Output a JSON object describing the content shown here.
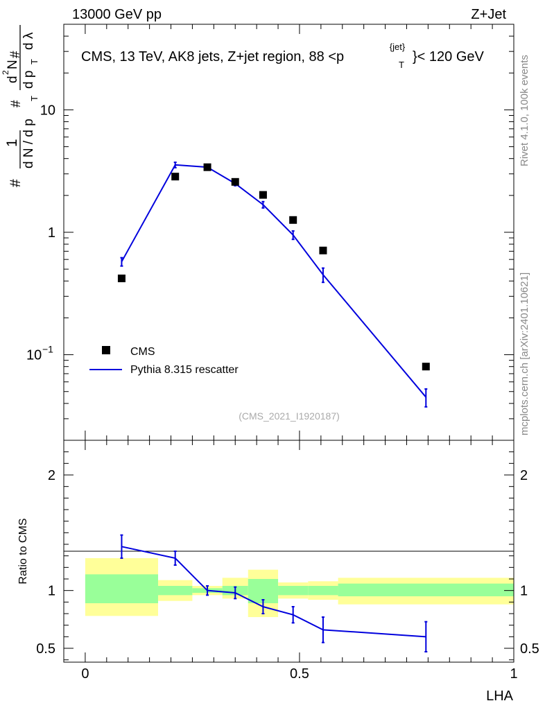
{
  "header": {
    "energy_label": "13000 GeV pp",
    "process_label": "Z+Jet"
  },
  "side_labels": {
    "rivet": "Rivet 4.1.0,  100k events",
    "mcplots": "mcplots.cern.ch [arXiv:2401.10621]"
  },
  "colors": {
    "data": "#000000",
    "mc": "#0000dd",
    "band_inner": "#99ff99",
    "band_outer": "#ffff99"
  },
  "chart_data": [
    {
      "type": "scatter",
      "name": "main-panel",
      "title": "CMS, 13 TeV, AK8 jets, Z+jet region, 88 <p",
      "title_sup": "{jet}",
      "title_sub": "T",
      "title_end": "}< 120 GeV",
      "watermark": "(CMS_2021_I1920187)",
      "yscale": "log",
      "xlim": [
        -0.05,
        1.0
      ],
      "ylim": [
        0.02,
        50
      ],
      "yticks": [
        {
          "value": 10,
          "label": "10"
        },
        {
          "value": 1,
          "label": "1"
        }
      ],
      "ytick_exp": {
        "value": 0.1,
        "base": "10",
        "exp": "−1"
      },
      "ylabel": {
        "hash1": "#",
        "one": "1",
        "dn": "d N / d p",
        "t": "T",
        "hash2": "#",
        "d2n": "d",
        "sq": "2",
        "n": "N",
        "dp": "d p",
        "dl": "d λ",
        "hash3": "#"
      },
      "legend": {
        "cms": "CMS",
        "mc": "Pythia 8.315 rescatter"
      },
      "series": [
        {
          "name": "CMS",
          "x": [
            0.085,
            0.21,
            0.285,
            0.35,
            0.415,
            0.485,
            0.555,
            0.795
          ],
          "y": [
            0.42,
            2.85,
            3.4,
            2.58,
            2.02,
            1.26,
            0.71,
            0.08
          ]
        },
        {
          "name": "Pythia 8.315 rescatter",
          "x": [
            0.085,
            0.21,
            0.285,
            0.35,
            0.415,
            0.485,
            0.555,
            0.795
          ],
          "y": [
            0.575,
            3.55,
            3.4,
            2.5,
            1.68,
            0.95,
            0.45,
            0.045
          ],
          "err": [
            0.045,
            0.18,
            0.12,
            0.1,
            0.1,
            0.075,
            0.06,
            0.0075
          ]
        }
      ]
    },
    {
      "type": "line",
      "name": "ratio-panel",
      "ylabel": "Ratio to CMS",
      "xlabel": "LHA",
      "xlim": [
        -0.05,
        1.0
      ],
      "ylim": [
        0.38,
        2.3
      ],
      "xticks": [
        {
          "value": 0,
          "label": "0"
        },
        {
          "value": 0.5,
          "label": "0.5"
        },
        {
          "value": 1,
          "label": "1"
        }
      ],
      "yticks": [
        {
          "value": 2,
          "label": "2"
        },
        {
          "value": 1,
          "label": "1"
        },
        {
          "value": 0.5,
          "label": "0.5"
        }
      ],
      "bands": [
        {
          "x0": 0.0,
          "x1": 0.17,
          "inner": [
            0.89,
            1.14
          ],
          "outer": [
            0.78,
            1.28
          ]
        },
        {
          "x0": 0.17,
          "x1": 0.25,
          "inner": [
            0.96,
            1.04
          ],
          "outer": [
            0.91,
            1.09
          ]
        },
        {
          "x0": 0.25,
          "x1": 0.32,
          "inner": [
            0.98,
            1.02
          ],
          "outer": [
            0.96,
            1.04
          ]
        },
        {
          "x0": 0.32,
          "x1": 0.38,
          "inner": [
            0.96,
            1.04
          ],
          "outer": [
            0.93,
            1.11
          ]
        },
        {
          "x0": 0.38,
          "x1": 0.45,
          "inner": [
            0.89,
            1.1
          ],
          "outer": [
            0.77,
            1.18
          ]
        },
        {
          "x0": 0.45,
          "x1": 0.52,
          "inner": [
            0.96,
            1.04
          ],
          "outer": [
            0.93,
            1.07
          ]
        },
        {
          "x0": 0.52,
          "x1": 0.59,
          "inner": [
            0.96,
            1.04
          ],
          "outer": [
            0.92,
            1.08
          ]
        },
        {
          "x0": 0.59,
          "x1": 1.0,
          "inner": [
            0.95,
            1.06
          ],
          "outer": [
            0.88,
            1.11
          ]
        }
      ],
      "series": [
        {
          "name": "Pythia 8.315 rescatter / CMS",
          "x": [
            0.085,
            0.21,
            0.285,
            0.35,
            0.415,
            0.485,
            0.555,
            0.795
          ],
          "y": [
            1.38,
            1.28,
            1.0,
            0.98,
            0.86,
            0.79,
            0.66,
            0.6
          ],
          "err": [
            0.1,
            0.06,
            0.04,
            0.05,
            0.06,
            0.07,
            0.11,
            0.13
          ]
        }
      ]
    }
  ]
}
